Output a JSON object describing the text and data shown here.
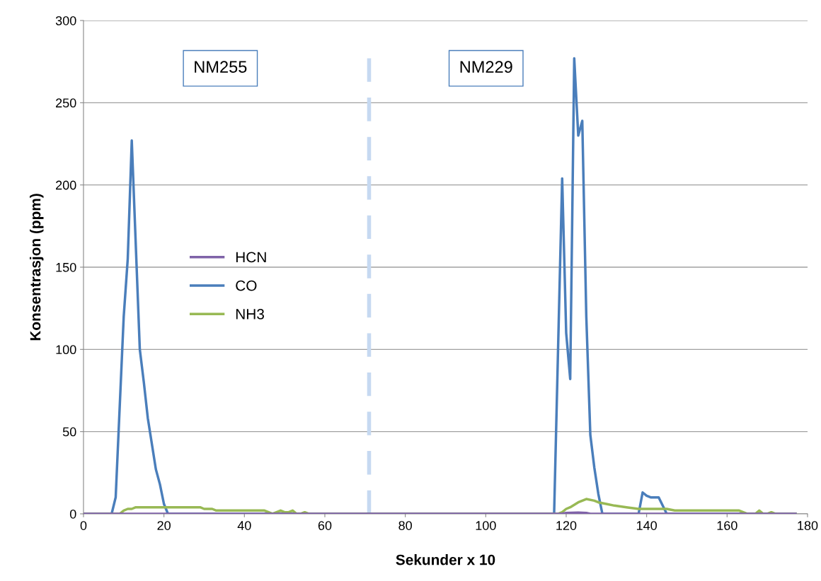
{
  "chart_data": {
    "type": "line",
    "xlabel": "Sekunder x 10",
    "ylabel": "Konsentrasjon (ppm)",
    "xlim": [
      0,
      180
    ],
    "xticks": [
      0,
      20,
      40,
      60,
      80,
      100,
      120,
      140,
      160,
      180
    ],
    "ylim": [
      0,
      300
    ],
    "yticks": [
      0,
      50,
      100,
      150,
      200,
      250,
      300
    ],
    "grid": "y",
    "legend": "left",
    "marker": "none",
    "line_style": "solid",
    "series": [
      {
        "name": "HCN",
        "color": "#7f62a8",
        "x": [
          0,
          119,
          120,
          123,
          125,
          126,
          177
        ],
        "values": [
          0,
          0,
          0.5,
          0.8,
          0.5,
          0,
          0
        ]
      },
      {
        "name": "CO",
        "color": "#4a7ebb",
        "x": [
          0,
          7,
          8,
          10,
          11,
          12,
          14,
          15,
          16,
          18,
          19,
          20,
          21,
          117,
          119,
          120,
          121,
          122,
          123,
          124,
          125,
          126,
          127,
          128,
          129,
          138,
          139,
          140,
          141,
          143,
          145,
          177
        ],
        "values": [
          0,
          0,
          10,
          120,
          155,
          227,
          100,
          80,
          58,
          27,
          18,
          6,
          0,
          0,
          204,
          110,
          82,
          277,
          230,
          239,
          120,
          48,
          28,
          12,
          0,
          0,
          13,
          11,
          10,
          10,
          0,
          0
        ]
      },
      {
        "name": "NH3",
        "color": "#98b954",
        "x": [
          0,
          9,
          10,
          11,
          12,
          13,
          29,
          30,
          31,
          32,
          33,
          45,
          46,
          47,
          49,
          50,
          51,
          52,
          53,
          54,
          55,
          56,
          118,
          119,
          120,
          121,
          123,
          125,
          127,
          128,
          130,
          132,
          135,
          138,
          145,
          147,
          163,
          165,
          167,
          168,
          169,
          170,
          171,
          172,
          177
        ],
        "values": [
          0,
          0,
          2,
          3,
          3,
          4,
          4,
          3,
          3,
          3,
          2,
          2,
          1,
          0,
          2,
          1,
          1,
          2,
          0,
          0,
          1,
          0,
          0,
          1,
          3,
          4,
          7,
          9,
          8,
          7,
          6,
          5,
          4,
          3,
          3,
          2,
          2,
          0,
          0,
          2,
          0,
          0,
          1,
          0,
          0
        ]
      }
    ],
    "ref_lines": [
      {
        "axis": "x",
        "value": 71,
        "color": "#c6d9f1",
        "line_style": "dashed"
      }
    ],
    "annotations": [
      "NM255",
      "NM229"
    ]
  }
}
